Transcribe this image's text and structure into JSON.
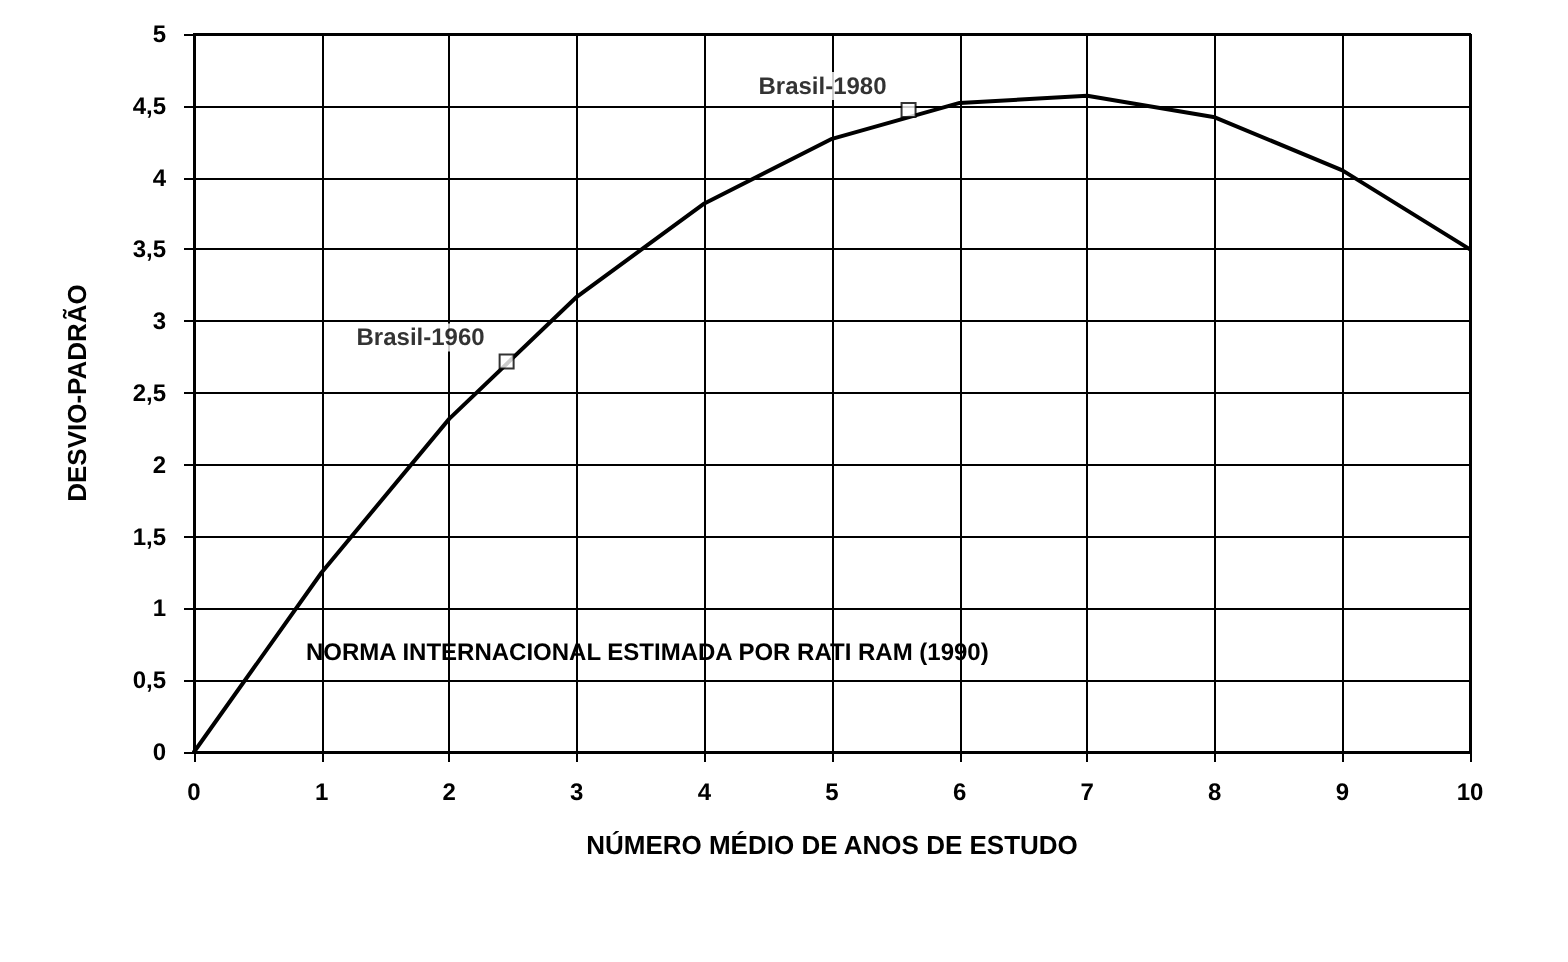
{
  "chart_data": {
    "type": "line",
    "xlabel": "NÚMERO MÉDIO DE ANOS DE ESTUDO",
    "ylabel": "DESVIO-PADRÃO",
    "x": [
      0,
      1,
      2,
      3,
      4,
      5,
      6,
      7,
      8,
      9,
      10
    ],
    "series": [
      {
        "color": "#000000",
        "values": [
          0,
          1.25,
          2.32,
          3.17,
          3.82,
          4.27,
          4.52,
          4.57,
          4.42,
          4.05,
          3.5
        ]
      }
    ],
    "xlim": [
      0,
      10
    ],
    "xticks": [
      0,
      1,
      2,
      3,
      4,
      5,
      6,
      7,
      8,
      9,
      10
    ],
    "ylim": [
      0,
      5
    ],
    "yticks": [
      0,
      {
        "value": 0.5,
        "label": "0,5"
      },
      1,
      {
        "value": 1.5,
        "label": "1,5"
      },
      2,
      {
        "value": 2.5,
        "label": "2,5"
      },
      3,
      {
        "value": 3.5,
        "label": "3,5"
      },
      4,
      {
        "value": 4.5,
        "label": "4,5"
      },
      5
    ],
    "annotations": [
      {
        "text": "Brasil-1960",
        "x": 2.45,
        "y": 2.72
      },
      {
        "text": "Brasil-1980",
        "x": 5.6,
        "y": 4.47
      },
      "NORMA INTERNACIONAL ESTIMADA POR RATI RAM (1990)"
    ],
    "grid": true,
    "marker": "none",
    "line_style": "solid"
  }
}
